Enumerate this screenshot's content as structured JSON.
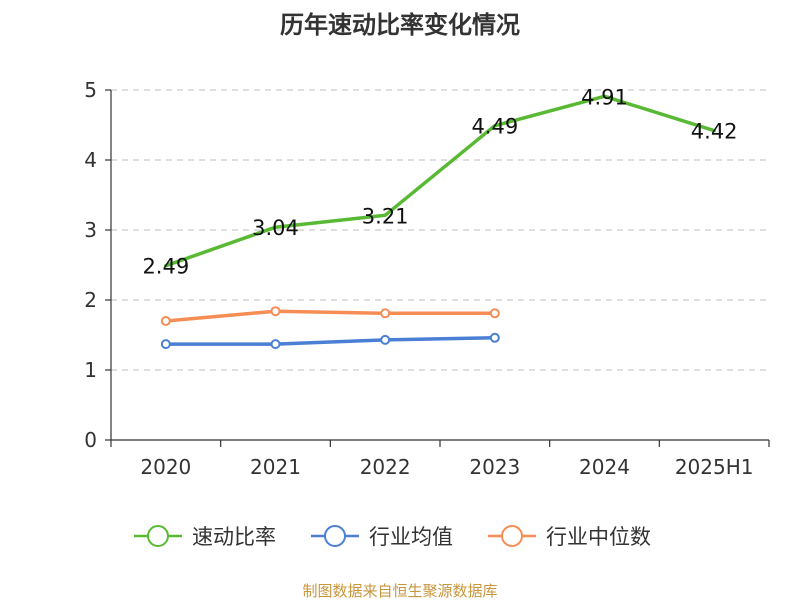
{
  "chart_data": {
    "type": "line",
    "title": "历年速动比率变化情况",
    "categories": [
      "2020",
      "2021",
      "2022",
      "2023",
      "2024",
      "2025H1"
    ],
    "ylim": [
      0,
      5
    ],
    "yticks": [
      "0",
      "1",
      "2",
      "3",
      "4",
      "5"
    ],
    "grid": true,
    "legend_position": "bottom",
    "series": [
      {
        "name": "速动比率",
        "color": "#5ab934",
        "values": [
          2.49,
          3.04,
          3.21,
          4.49,
          4.91,
          4.42
        ],
        "labels": [
          "2.49",
          "3.04",
          "3.21",
          "4.49",
          "4.91",
          "4.42"
        ],
        "show_markers": false
      },
      {
        "name": "行业均值",
        "color": "#4a7fd4",
        "values": [
          1.37,
          1.37,
          1.43,
          1.46,
          null,
          null
        ],
        "show_markers": true
      },
      {
        "name": "行业中位数",
        "color": "#f58d55",
        "values": [
          1.7,
          1.84,
          1.81,
          1.81,
          null,
          null
        ],
        "show_markers": true
      }
    ]
  },
  "source_text": "制图数据来自恒生聚源数据库"
}
